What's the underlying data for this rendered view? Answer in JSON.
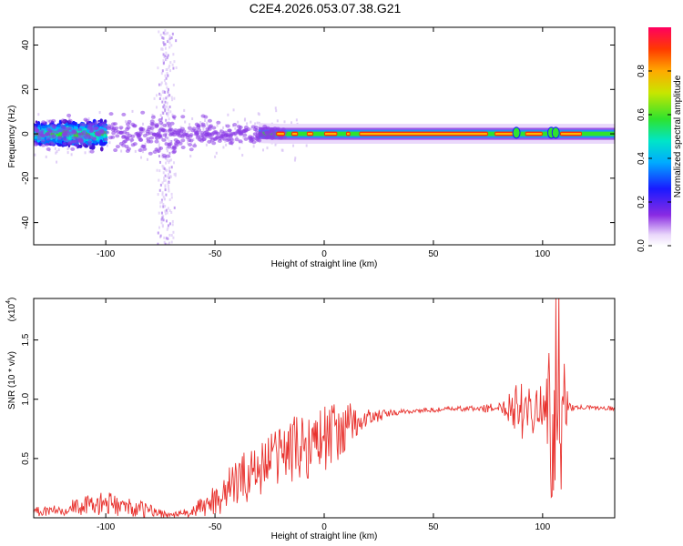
{
  "title": "C2E4.2026.053.07.38.G21",
  "chart_data": [
    {
      "type": "heatmap",
      "name": "spectrogram",
      "xlabel": "Height of straight line (km)",
      "ylabel": "Frequency (Hz)",
      "xlim": [
        -133,
        133
      ],
      "ylim": [
        -50,
        48
      ],
      "xticks": [
        -100,
        -50,
        0,
        50,
        100
      ],
      "yticks": [
        40,
        20,
        0,
        -20,
        -40
      ],
      "colorbar": {
        "label": "Normalized spectral amplitude",
        "range": [
          0,
          1
        ],
        "ticks": [
          "0.0",
          "0.2",
          "0.4",
          "0.6",
          "0.8"
        ],
        "tick_values": [
          0.0,
          0.2,
          0.4,
          0.6,
          0.8
        ]
      },
      "ridge": {
        "description_points": [
          [
            -133,
            0
          ],
          [
            -100,
            0
          ],
          [
            -50,
            1
          ],
          [
            -20,
            0
          ],
          [
            0,
            0
          ],
          [
            50,
            0
          ],
          [
            100,
            0
          ],
          [
            133,
            0
          ]
        ],
        "spread_hz": [
          [
            -133,
            6
          ],
          [
            -70,
            9
          ],
          [
            -50,
            7
          ],
          [
            -25,
            3
          ],
          [
            0,
            2
          ],
          [
            133,
            2
          ]
        ],
        "sparse_column_x": -73,
        "sparse_column_freq_range": [
          -50,
          48
        ]
      }
    },
    {
      "type": "line",
      "name": "snr",
      "xlabel": "Height of straight line (km)",
      "ylabel": "SNR (10 * v/v)",
      "y_scale_label": "(x10",
      "y_scale_exponent": "4",
      "xlim": [
        -133,
        133
      ],
      "ylim": [
        0.0,
        1.85
      ],
      "xticks": [
        -100,
        -50,
        0,
        50,
        100
      ],
      "yticks": [
        "0.5",
        "1.0",
        "1.5"
      ],
      "ytick_values": [
        0.5,
        1.0,
        1.5
      ],
      "color": "#e8322e",
      "series": [
        {
          "name": "SNR",
          "envelope_x": [
            -133,
            -120,
            -100,
            -80,
            -70,
            -60,
            -50,
            -40,
            -30,
            -20,
            -10,
            0,
            5,
            10,
            15,
            20,
            25,
            30,
            40,
            50,
            60,
            70,
            80,
            85,
            90,
            95,
            100,
            103,
            105,
            107,
            110,
            112,
            115,
            120,
            133
          ],
          "envelope_y": [
            0.05,
            0.08,
            0.12,
            0.06,
            0.02,
            0.05,
            0.15,
            0.3,
            0.42,
            0.55,
            0.6,
            0.68,
            0.72,
            0.76,
            0.8,
            0.84,
            0.86,
            0.88,
            0.9,
            0.91,
            0.92,
            0.92,
            0.93,
            0.95,
            0.96,
            0.95,
            0.94,
            0.95,
            1.0,
            1.1,
            0.98,
            0.93,
            0.93,
            0.93,
            0.92
          ],
          "noise_amp": [
            0.05,
            0.06,
            0.1,
            0.06,
            0.02,
            0.05,
            0.15,
            0.2,
            0.25,
            0.25,
            0.3,
            0.3,
            0.25,
            0.22,
            0.15,
            0.08,
            0.05,
            0.03,
            0.02,
            0.02,
            0.02,
            0.03,
            0.04,
            0.15,
            0.3,
            0.25,
            0.15,
            0.5,
            0.8,
            0.8,
            0.3,
            0.04,
            0.02,
            0.02,
            0.02
          ]
        }
      ]
    }
  ]
}
